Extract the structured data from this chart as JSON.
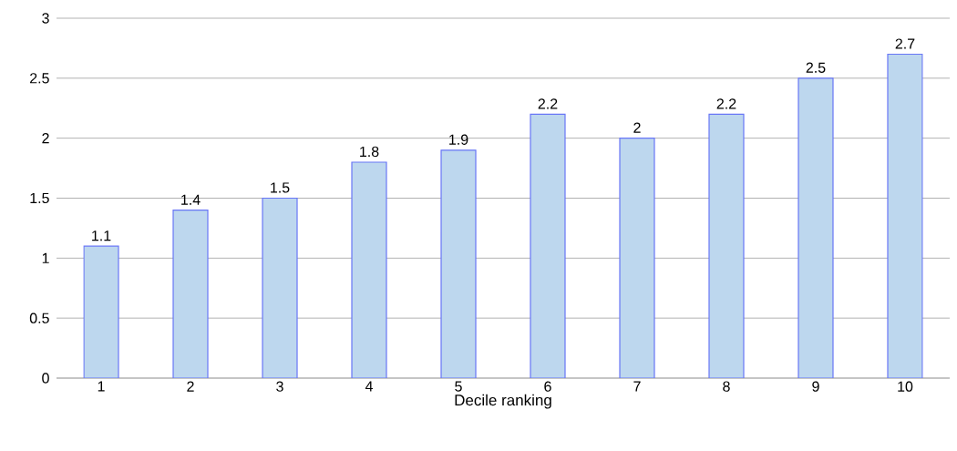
{
  "chart_data": {
    "type": "bar",
    "xlabel": "Decile ranking",
    "categories": [
      "1",
      "2",
      "3",
      "4",
      "5",
      "6",
      "7",
      "8",
      "9",
      "10"
    ],
    "values": [
      1.1,
      1.4,
      1.5,
      1.8,
      1.9,
      2.2,
      2,
      2.2,
      2.5,
      2.7
    ],
    "color": "#bdd7ee",
    "ylim": [
      0,
      3
    ],
    "yticks": [
      0,
      0.5,
      1,
      1.5,
      2,
      2.5,
      3
    ],
    "grid": "y",
    "data_labels": true
  }
}
